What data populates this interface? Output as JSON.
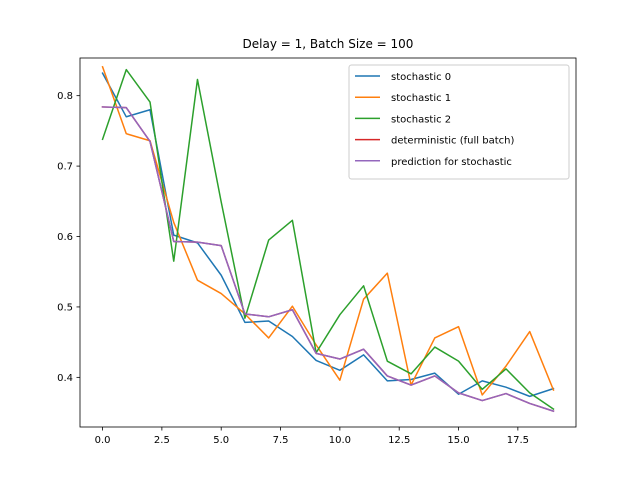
{
  "chart_data": {
    "type": "line",
    "title": "Delay = 1, Batch Size = 100",
    "xlabel": "",
    "ylabel": "",
    "xlim": [
      -0.95,
      19.95
    ],
    "ylim": [
      0.3295,
      0.8535
    ],
    "xticks": [
      0.0,
      2.5,
      5.0,
      7.5,
      10.0,
      12.5,
      15.0,
      17.5
    ],
    "xtick_labels": [
      "0.0",
      "2.5",
      "5.0",
      "7.5",
      "10.0",
      "12.5",
      "15.0",
      "17.5"
    ],
    "yticks": [
      0.4,
      0.5,
      0.6,
      0.7,
      0.8
    ],
    "ytick_labels": [
      "0.4",
      "0.5",
      "0.6",
      "0.7",
      "0.8"
    ],
    "grid": false,
    "legend_position": "top-right",
    "x": [
      0,
      1,
      2,
      3,
      4,
      5,
      6,
      7,
      8,
      9,
      10,
      11,
      12,
      13,
      14,
      15,
      16,
      17,
      18,
      19
    ],
    "series": [
      {
        "name": "stochastic 0",
        "color": "#1f77b4",
        "values": [
          0.832,
          0.77,
          0.78,
          0.602,
          0.591,
          0.545,
          0.478,
          0.48,
          0.458,
          0.424,
          0.41,
          0.432,
          0.395,
          0.397,
          0.406,
          0.376,
          0.395,
          0.386,
          0.373,
          0.384
        ]
      },
      {
        "name": "stochastic 1",
        "color": "#ff7f0e",
        "values": [
          0.841,
          0.746,
          0.736,
          0.62,
          0.538,
          0.519,
          0.49,
          0.456,
          0.501,
          0.446,
          0.396,
          0.511,
          0.548,
          0.389,
          0.456,
          0.472,
          0.375,
          0.416,
          0.465,
          0.382
        ]
      },
      {
        "name": "stochastic 2",
        "color": "#2ca02c",
        "values": [
          0.738,
          0.837,
          0.791,
          0.565,
          0.823,
          0.649,
          0.484,
          0.595,
          0.623,
          0.435,
          0.489,
          0.53,
          0.423,
          0.405,
          0.443,
          0.423,
          0.383,
          0.412,
          0.378,
          0.355
        ]
      },
      {
        "name": "deterministic (full batch)",
        "color": "#d62728",
        "values": [
          0.784,
          0.783,
          0.735,
          0.593,
          0.592,
          0.587,
          0.49,
          0.486,
          0.496,
          0.434,
          0.426,
          0.44,
          0.402,
          0.389,
          0.402,
          0.378,
          0.367,
          0.377,
          0.363,
          0.352
        ]
      },
      {
        "name": "prediction for stochastic",
        "color": "#9467bd",
        "values": [
          0.784,
          0.783,
          0.735,
          0.593,
          0.592,
          0.587,
          0.49,
          0.486,
          0.496,
          0.434,
          0.426,
          0.44,
          0.402,
          0.389,
          0.402,
          0.378,
          0.367,
          0.377,
          0.363,
          0.352
        ]
      }
    ]
  }
}
